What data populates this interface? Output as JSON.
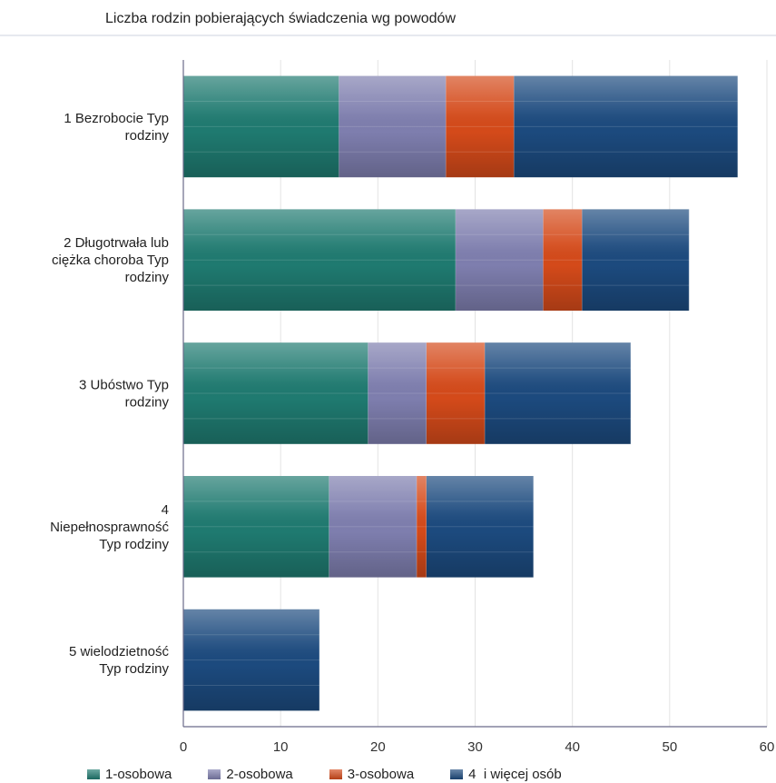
{
  "chart_data": {
    "type": "bar",
    "orientation": "horizontal",
    "stacked": true,
    "title": "Liczba rodzin pobierających świadczenia wg powodów",
    "categories": [
      [
        "1 Bezrobocie Typ",
        "rodziny"
      ],
      [
        "2 Długotrwała lub",
        "ciężka choroba Typ",
        "rodziny"
      ],
      [
        "3 Ubóstwo Typ",
        "rodziny"
      ],
      [
        "4",
        "Niepełnosprawność",
        "Typ rodziny"
      ],
      [
        "5 wielodzietność",
        "Typ rodziny"
      ]
    ],
    "series": [
      {
        "name": "1-osobowa",
        "color": "#1f7a70",
        "values": [
          16,
          28,
          19,
          15,
          0
        ]
      },
      {
        "name": "2-osobowa",
        "color": "#7e7eae",
        "values": [
          11,
          9,
          6,
          9,
          0
        ]
      },
      {
        "name": "3-osobowa",
        "color": "#d44a1a",
        "values": [
          7,
          4,
          6,
          1,
          0
        ]
      },
      {
        "name": "4  i więcej osób",
        "color": "#1c4a7e",
        "values": [
          23,
          11,
          15,
          11,
          14
        ]
      }
    ],
    "xlim": [
      0,
      60
    ],
    "xticks": [
      "0",
      "10",
      "20",
      "30",
      "40",
      "50",
      "60"
    ],
    "grid": true,
    "legend_position": "bottom"
  }
}
